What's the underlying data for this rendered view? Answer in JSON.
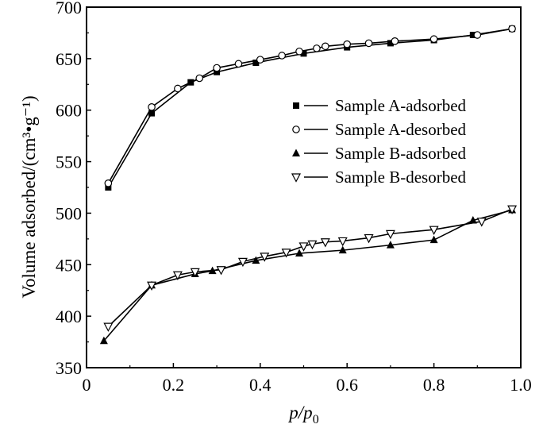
{
  "chart_data": {
    "type": "line",
    "title": "",
    "xlabel_main": "p/p",
    "xlabel_sub": "0",
    "ylabel": "Volume adsorbed/(cm³•g⁻¹)",
    "xlim": [
      0,
      1.0
    ],
    "ylim": [
      350,
      700
    ],
    "xticks": [
      "0",
      "0.2",
      "0.4",
      "0.6",
      "0.8",
      "1.0"
    ],
    "yticks": [
      "350",
      "400",
      "450",
      "500",
      "550",
      "600",
      "650",
      "700"
    ],
    "grid": false,
    "legend_position": "right-middle",
    "series": [
      {
        "name": "Sample A-adsorbed",
        "marker": "filled-square",
        "x": [
          0.05,
          0.15,
          0.24,
          0.3,
          0.39,
          0.5,
          0.6,
          0.7,
          0.8,
          0.89,
          0.98
        ],
        "y": [
          525,
          597,
          627,
          637,
          646,
          655,
          661,
          665,
          668,
          673,
          679
        ]
      },
      {
        "name": "Sample A-desorbed",
        "marker": "open-circle",
        "x": [
          0.05,
          0.15,
          0.21,
          0.26,
          0.3,
          0.35,
          0.4,
          0.45,
          0.49,
          0.53,
          0.55,
          0.6,
          0.65,
          0.71,
          0.8,
          0.9,
          0.98
        ],
        "y": [
          529,
          603,
          621,
          631,
          641,
          645,
          649,
          653,
          657,
          660,
          662,
          664,
          665,
          667,
          669,
          673,
          679
        ]
      },
      {
        "name": "Sample B-adsorbed",
        "marker": "filled-triangle-up",
        "x": [
          0.04,
          0.15,
          0.25,
          0.29,
          0.39,
          0.49,
          0.59,
          0.7,
          0.8,
          0.89,
          0.98
        ],
        "y": [
          376,
          430,
          441,
          444,
          454,
          461,
          464,
          469,
          474,
          493,
          503
        ]
      },
      {
        "name": "Sample B-desorbed",
        "marker": "open-triangle-down",
        "x": [
          0.05,
          0.15,
          0.21,
          0.25,
          0.31,
          0.36,
          0.41,
          0.46,
          0.5,
          0.52,
          0.55,
          0.59,
          0.65,
          0.7,
          0.8,
          0.91,
          0.98
        ],
        "y": [
          390,
          430,
          440,
          443,
          445,
          453,
          458,
          462,
          468,
          470,
          472,
          473,
          476,
          480,
          484,
          492,
          504
        ]
      }
    ]
  }
}
